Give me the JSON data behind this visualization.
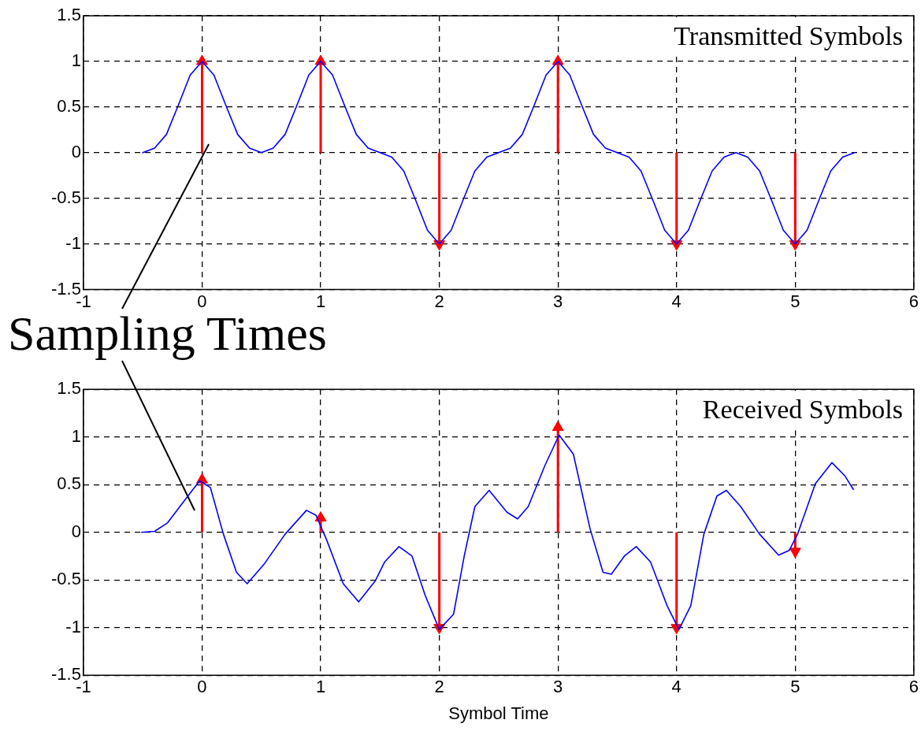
{
  "chart_data": [
    {
      "type": "line",
      "annotations": [
        "Transmitted Symbols",
        "Sampling Times"
      ],
      "xlim": [
        -1,
        6
      ],
      "ylim": [
        -1.5,
        1.5
      ],
      "xticks": [
        -1,
        0,
        1,
        2,
        3,
        4,
        5,
        6
      ],
      "yticks": [
        -1.5,
        -1,
        -0.5,
        0,
        0.5,
        1,
        1.5
      ],
      "grid": true,
      "legend": false,
      "series": [
        {
          "color": "#0000ff",
          "marker": "none",
          "x": [
            -0.5,
            -0.4,
            -0.3,
            -0.2,
            -0.1,
            0,
            0.1,
            0.2,
            0.3,
            0.4,
            0.5,
            0.6,
            0.7,
            0.8,
            0.9,
            1,
            1.1,
            1.2,
            1.3,
            1.4,
            1.5,
            1.6,
            1.7,
            1.8,
            1.9,
            2,
            2.1,
            2.2,
            2.3,
            2.4,
            2.5,
            2.6,
            2.7,
            2.8,
            2.9,
            3,
            3.1,
            3.2,
            3.3,
            3.4,
            3.5,
            3.6,
            3.7,
            3.8,
            3.9,
            4,
            4.1,
            4.2,
            4.3,
            4.4,
            4.5,
            4.6,
            4.7,
            4.8,
            4.9,
            5,
            5.1,
            5.2,
            5.3,
            5.4,
            5.5
          ],
          "values": [
            0,
            0.05,
            0.2,
            0.52,
            0.85,
            1,
            0.85,
            0.52,
            0.2,
            0.05,
            0,
            0.05,
            0.2,
            0.52,
            0.85,
            1,
            0.85,
            0.52,
            0.2,
            0.05,
            0,
            -0.05,
            -0.2,
            -0.52,
            -0.85,
            -1,
            -0.85,
            -0.52,
            -0.2,
            -0.05,
            0,
            0.05,
            0.2,
            0.52,
            0.85,
            1,
            0.85,
            0.52,
            0.2,
            0.05,
            0,
            -0.05,
            -0.2,
            -0.52,
            -0.85,
            -1,
            -0.85,
            -0.52,
            -0.2,
            -0.05,
            0,
            -0.05,
            -0.2,
            -0.52,
            -0.85,
            -1,
            -0.85,
            -0.52,
            -0.2,
            -0.05,
            0
          ]
        },
        {
          "type": "lollipop",
          "color": "#ff0000",
          "marker": "triangle",
          "x": [
            0,
            1,
            2,
            3,
            4,
            5
          ],
          "values": [
            1,
            1,
            -1,
            1,
            -1,
            -1
          ]
        }
      ]
    },
    {
      "type": "line",
      "xlabel": "Symbol Time",
      "annotations": [
        "Received Symbols"
      ],
      "xlim": [
        -1,
        6
      ],
      "ylim": [
        -1.5,
        1.5
      ],
      "xticks": [
        -1,
        0,
        1,
        2,
        3,
        4,
        5,
        6
      ],
      "yticks": [
        -1.5,
        -1,
        -0.5,
        0,
        0.5,
        1,
        1.5
      ],
      "grid": true,
      "legend": false,
      "series": [
        {
          "color": "#0000ff",
          "marker": "none",
          "x": [
            -0.51,
            -0.4,
            -0.29,
            -0.15,
            -0.02,
            0.07,
            0.18,
            0.29,
            0.38,
            0.52,
            0.7,
            0.88,
            0.96,
            1.05,
            1.19,
            1.32,
            1.46,
            1.54,
            1.66,
            1.77,
            1.88,
            2.0,
            2.12,
            2.21,
            2.3,
            2.42,
            2.57,
            2.66,
            2.75,
            2.89,
            3.01,
            3.13,
            3.27,
            3.38,
            3.45,
            3.56,
            3.66,
            3.78,
            3.92,
            4.02,
            4.12,
            4.23,
            4.34,
            4.42,
            4.54,
            4.7,
            4.86,
            4.95,
            5.02,
            5.17,
            5.31,
            5.42,
            5.49
          ],
          "values": [
            0,
            0.01,
            0.1,
            0.33,
            0.54,
            0.47,
            -0.02,
            -0.42,
            -0.54,
            -0.34,
            -0.02,
            0.23,
            0.18,
            -0.08,
            -0.54,
            -0.73,
            -0.51,
            -0.31,
            -0.15,
            -0.25,
            -0.66,
            -1.02,
            -0.86,
            -0.25,
            0.27,
            0.44,
            0.21,
            0.14,
            0.27,
            0.7,
            1.02,
            0.82,
            0.04,
            -0.42,
            -0.44,
            -0.25,
            -0.15,
            -0.31,
            -0.77,
            -1.02,
            -0.77,
            -0.02,
            0.38,
            0.44,
            0.27,
            -0.02,
            -0.24,
            -0.19,
            -0.02,
            0.51,
            0.73,
            0.59,
            0.45
          ]
        },
        {
          "type": "lollipop",
          "color": "#ff0000",
          "marker": "triangle",
          "x": [
            0,
            1,
            2,
            3,
            4,
            5
          ],
          "values": [
            0.55,
            0.15,
            -1,
            1.1,
            -1,
            -0.2
          ]
        }
      ]
    }
  ]
}
